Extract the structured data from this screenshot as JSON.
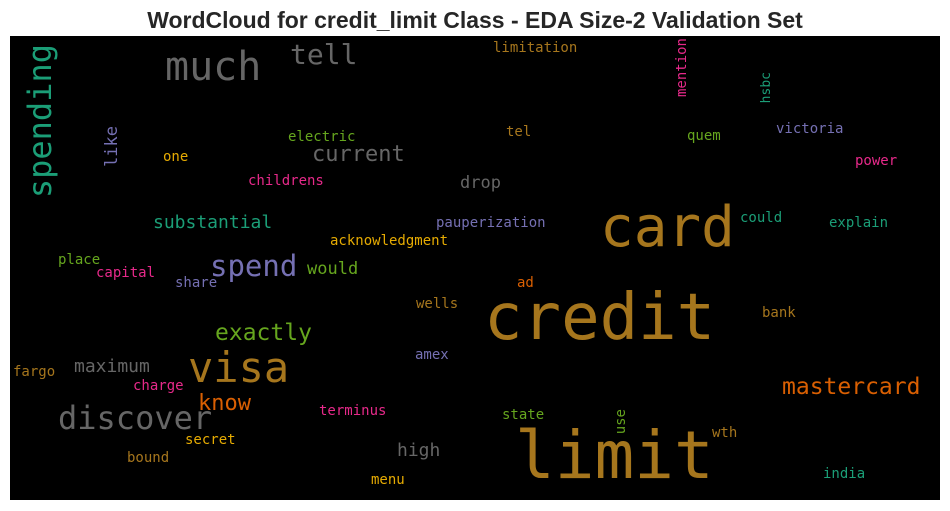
{
  "title": "WordCloud for credit_limit Class - EDA Size-2 Validation Set",
  "colors": {
    "gold": "#a6761d",
    "gray": "#666666",
    "teal": "#1b9e77",
    "purple": "#7570b3",
    "orange": "#d95f02",
    "pink": "#e7298a",
    "green": "#66a61e",
    "yellow": "#e6ab02"
  },
  "words": [
    {
      "text": "credit",
      "color": "gold"
    },
    {
      "text": "limit",
      "color": "gold"
    },
    {
      "text": "card",
      "color": "gold"
    },
    {
      "text": "much",
      "color": "gray"
    },
    {
      "text": "visa",
      "color": "gold"
    },
    {
      "text": "spending",
      "color": "teal",
      "orientation": "vertical"
    },
    {
      "text": "discover",
      "color": "gray"
    },
    {
      "text": "spend",
      "color": "purple"
    },
    {
      "text": "tell",
      "color": "gray"
    },
    {
      "text": "mastercard",
      "color": "orange"
    },
    {
      "text": "exactly",
      "color": "green"
    },
    {
      "text": "current",
      "color": "gray"
    },
    {
      "text": "know",
      "color": "orange"
    },
    {
      "text": "maximum",
      "color": "gray"
    },
    {
      "text": "substantial",
      "color": "teal"
    },
    {
      "text": "high",
      "color": "gray"
    },
    {
      "text": "would",
      "color": "green"
    },
    {
      "text": "drop",
      "color": "gray"
    },
    {
      "text": "like",
      "color": "purple",
      "orientation": "vertical"
    },
    {
      "text": "limitation",
      "color": "gold"
    },
    {
      "text": "mention",
      "color": "pink",
      "orientation": "vertical"
    },
    {
      "text": "hsbc",
      "color": "teal",
      "orientation": "vertical"
    },
    {
      "text": "electric",
      "color": "green"
    },
    {
      "text": "tel",
      "color": "gold"
    },
    {
      "text": "quem",
      "color": "green"
    },
    {
      "text": "victoria",
      "color": "purple"
    },
    {
      "text": "one",
      "color": "yellow"
    },
    {
      "text": "childrens",
      "color": "pink"
    },
    {
      "text": "power",
      "color": "pink"
    },
    {
      "text": "could",
      "color": "teal"
    },
    {
      "text": "explain",
      "color": "teal"
    },
    {
      "text": "pauperization",
      "color": "purple"
    },
    {
      "text": "acknowledgment",
      "color": "yellow"
    },
    {
      "text": "place",
      "color": "green"
    },
    {
      "text": "capital",
      "color": "pink"
    },
    {
      "text": "share",
      "color": "purple"
    },
    {
      "text": "ad",
      "color": "orange"
    },
    {
      "text": "wells",
      "color": "gold"
    },
    {
      "text": "bank",
      "color": "gold"
    },
    {
      "text": "fargo",
      "color": "gold"
    },
    {
      "text": "charge",
      "color": "pink"
    },
    {
      "text": "amex",
      "color": "purple"
    },
    {
      "text": "terminus",
      "color": "pink"
    },
    {
      "text": "state",
      "color": "green"
    },
    {
      "text": "use",
      "color": "green",
      "orientation": "vertical"
    },
    {
      "text": "wth",
      "color": "gold"
    },
    {
      "text": "secret",
      "color": "yellow"
    },
    {
      "text": "bound",
      "color": "gold"
    },
    {
      "text": "menu",
      "color": "yellow"
    },
    {
      "text": "india",
      "color": "teal"
    }
  ]
}
